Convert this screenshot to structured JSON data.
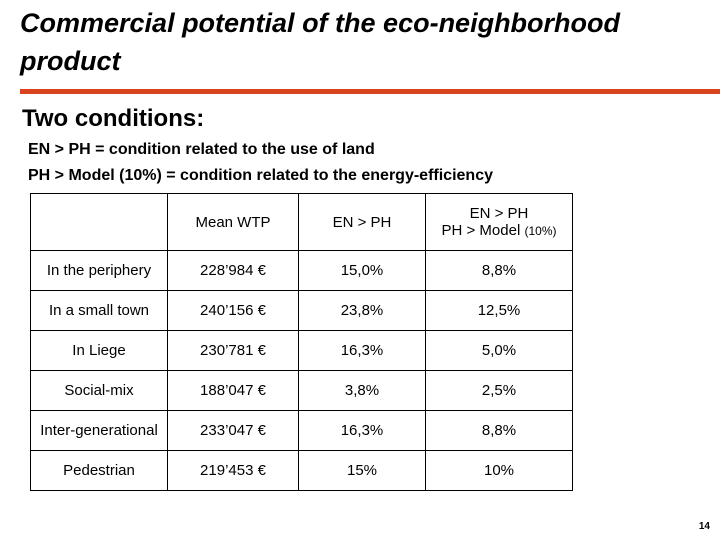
{
  "title": "Commercial potential of the eco-neighborhood product",
  "subtitle": "Two conditions:",
  "conditions": [
    "EN > PH = condition related to the use of land",
    "PH > Model (10%) = condition related to the energy-efficiency"
  ],
  "table": {
    "headers": {
      "col1": "Mean WTP",
      "col2": "EN > PH",
      "col3_line1": "EN > PH",
      "col3_line2": "PH > Model",
      "col3_small": "(10%)"
    },
    "rows": [
      {
        "label": "In the periphery",
        "wtp": "228’984 €",
        "en_ph": "15,0%",
        "ph_model": "8,8%"
      },
      {
        "label": "In a small town",
        "wtp": "240’156 €",
        "en_ph": "23,8%",
        "ph_model": "12,5%"
      },
      {
        "label": "In Liege",
        "wtp": "230’781 €",
        "en_ph": "16,3%",
        "ph_model": "5,0%"
      },
      {
        "label": "Social-mix",
        "wtp": "188’047 €",
        "en_ph": "3,8%",
        "ph_model": "2,5%"
      },
      {
        "label": "Inter-generational",
        "wtp": "233’047 €",
        "en_ph": "16,3%",
        "ph_model": "8,8%"
      },
      {
        "label": "Pedestrian",
        "wtp": "219’453 €",
        "en_ph": "15%",
        "ph_model": "10%"
      }
    ]
  },
  "page_number": "14",
  "colors": {
    "accent_rule": "#d9441f"
  }
}
